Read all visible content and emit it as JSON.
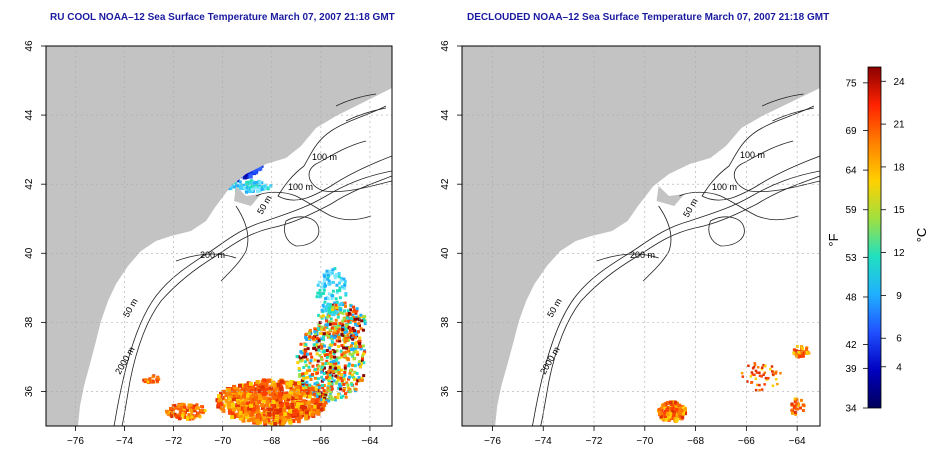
{
  "panels": [
    {
      "title": "RU COOL NOAA–12 Sea Surface Temperature March 07, 2007 21:18 GMT",
      "x_ticks": [
        "−76",
        "−74",
        "−72",
        "−70",
        "−68",
        "−66",
        "−64"
      ],
      "y_ticks": [
        "36",
        "38",
        "40",
        "42",
        "44",
        "46"
      ],
      "contour_labels": [
        "100 m",
        "100 m",
        "50 m",
        "200 m",
        "50 m",
        "2000 m"
      ]
    },
    {
      "title": "DECLOUDED NOAA–12 Sea Surface Temperature March 07, 2007 21:18 GMT",
      "x_ticks": [
        "−76",
        "−74",
        "−72",
        "−70",
        "−68",
        "−66",
        "−64"
      ],
      "y_ticks": [
        "36",
        "38",
        "40",
        "42",
        "44",
        "46"
      ],
      "contour_labels": [
        "100 m",
        "100 m",
        "50 m",
        "200 m",
        "50 m",
        "2000 m"
      ]
    }
  ],
  "colorbar": {
    "fahrenheit_label": "°F",
    "celsius_label": "°C",
    "fahrenheit_ticks": [
      "75",
      "69",
      "64",
      "59",
      "53",
      "48",
      "42",
      "39",
      "34"
    ],
    "celsius_ticks": [
      "24",
      "21",
      "18",
      "15",
      "12",
      "9",
      "6",
      "4"
    ]
  },
  "colors": {
    "land": "#c3c3c3",
    "title": "#1a1aa0",
    "contour": "#000000",
    "colormap": [
      "#8b0000",
      "#ff2200",
      "#ff8000",
      "#ffd000",
      "#a0e040",
      "#20e0c0",
      "#20b0ff",
      "#2050ff",
      "#0000c0",
      "#00005a"
    ]
  }
}
